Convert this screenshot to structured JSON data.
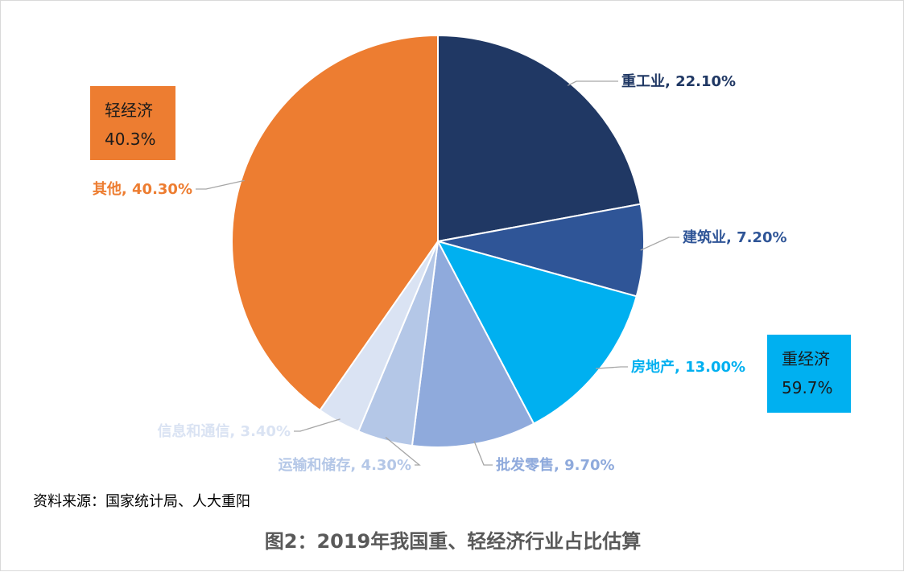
{
  "chart_data": {
    "type": "pie",
    "title": "图2：2019年我国重、轻经济行业占比估算",
    "source": "资料来源：国家统计局、人大重阳",
    "slices": [
      {
        "name": "重工业",
        "value": 22.1,
        "label": "重工业, 22.10%",
        "color": "#203864"
      },
      {
        "name": "建筑业",
        "value": 7.2,
        "label": "建筑业, 7.20%",
        "color": "#2f5597"
      },
      {
        "name": "房地产",
        "value": 13.0,
        "label": "房地产, 13.00%",
        "color": "#00b0f0"
      },
      {
        "name": "批发零售",
        "value": 9.7,
        "label": "批发零售, 9.70%",
        "color": "#8faadc"
      },
      {
        "name": "运输和储存",
        "value": 4.3,
        "label": "运输和储存, 4.30%",
        "color": "#b4c7e7"
      },
      {
        "name": "信息和通信",
        "value": 3.4,
        "label": "信息和通信, 3.40%",
        "color": "#dae3f3"
      },
      {
        "name": "其他",
        "value": 40.3,
        "label": "其他, 40.30%",
        "color": "#ed7d31"
      }
    ],
    "annotations": [
      {
        "group": "light",
        "name": "轻经济",
        "value": "40.3%",
        "color": "#ed7d31"
      },
      {
        "group": "heavy",
        "name": "重经济",
        "value": "59.7%",
        "color": "#00b0f0"
      }
    ]
  }
}
